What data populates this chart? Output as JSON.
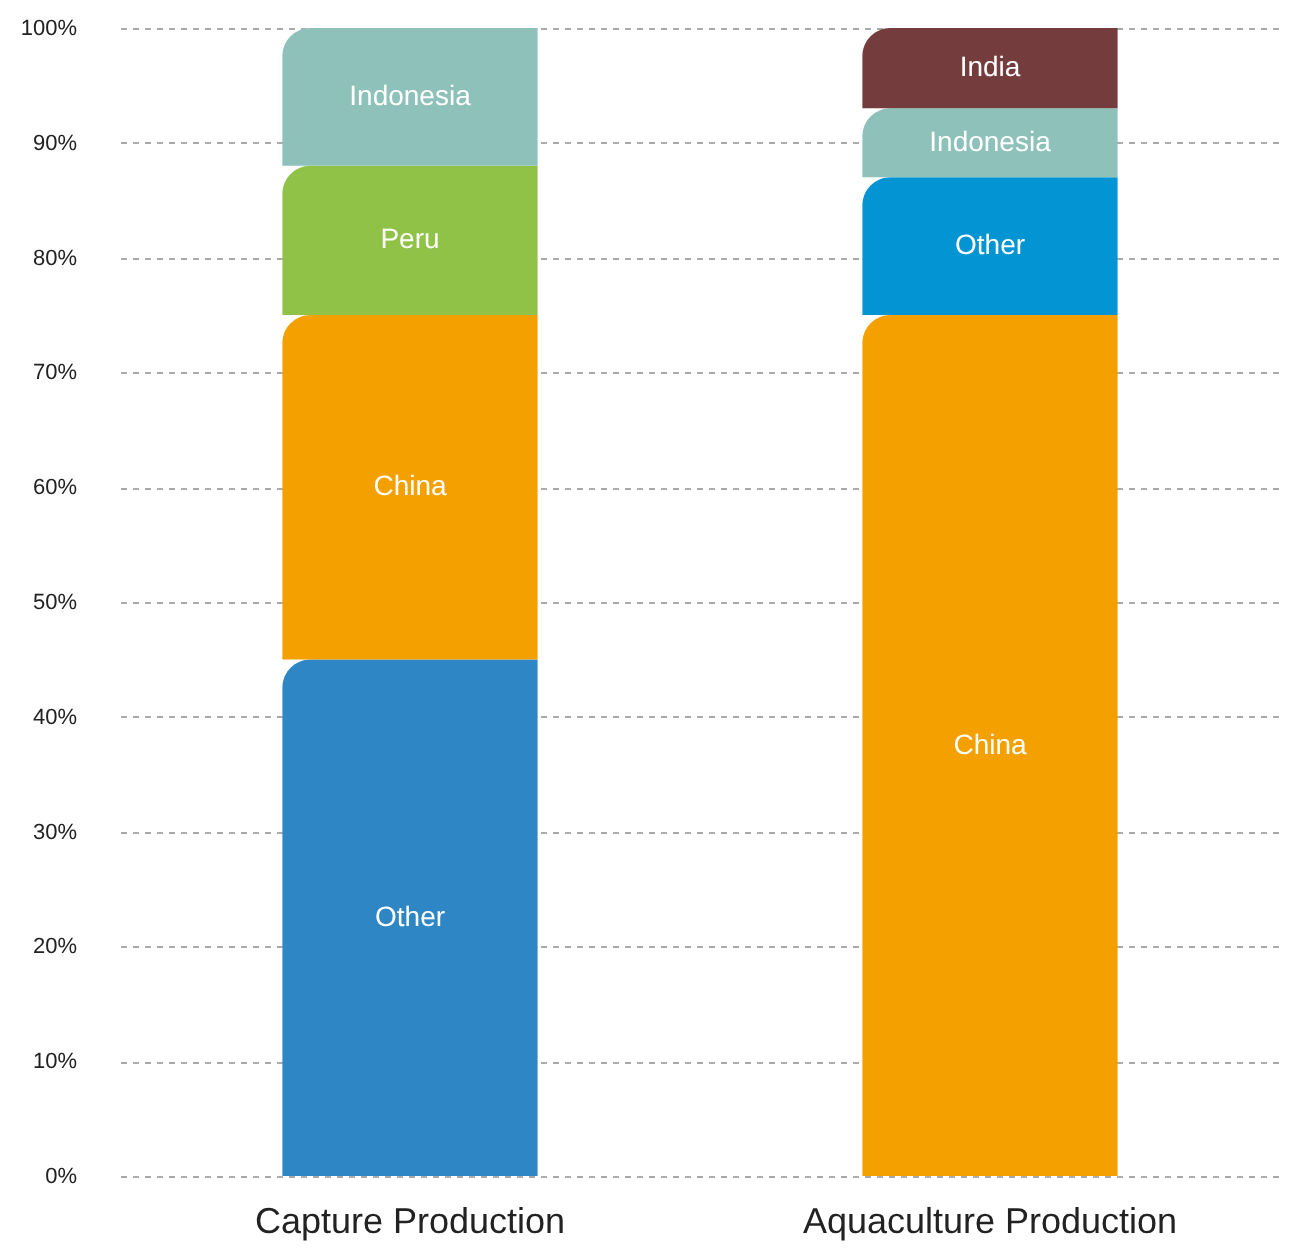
{
  "chart_data": {
    "type": "bar",
    "stacked": true,
    "categories": [
      "Capture Production",
      "Aquaculture Production"
    ],
    "series": [
      {
        "values": [
          45,
          75
        ],
        "colors": [
          "#2f86c4",
          "#f3a000"
        ],
        "value_labels": [
          "Other",
          "China"
        ]
      },
      {
        "values": [
          30,
          12
        ],
        "colors": [
          "#f3a000",
          "#0395d3"
        ],
        "value_labels": [
          "China",
          "Other"
        ]
      },
      {
        "values": [
          13,
          6
        ],
        "colors": [
          "#8fc246",
          "#8dc1b9"
        ],
        "value_labels": [
          "Peru",
          "Indonesia"
        ]
      },
      {
        "values": [
          12,
          7
        ],
        "colors": [
          "#8dc1b9",
          "#743c3c"
        ],
        "value_labels": [
          "Indonesia",
          "India"
        ]
      }
    ],
    "ylim": [
      0,
      100
    ],
    "yticks": [
      {
        "value": 0,
        "label": "0%"
      },
      {
        "value": 10,
        "label": "10%"
      },
      {
        "value": 20,
        "label": "20%"
      },
      {
        "value": 30,
        "label": "30%"
      },
      {
        "value": 40,
        "label": "40%"
      },
      {
        "value": 50,
        "label": "50%"
      },
      {
        "value": 60,
        "label": "60%"
      },
      {
        "value": 70,
        "label": "70%"
      },
      {
        "value": 80,
        "label": "80%"
      },
      {
        "value": 90,
        "label": "90%"
      },
      {
        "value": 100,
        "label": "100%"
      }
    ],
    "grid": "y"
  }
}
